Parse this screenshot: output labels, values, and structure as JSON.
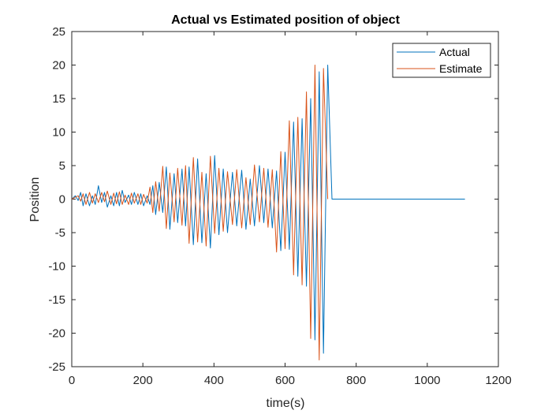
{
  "chart_data": {
    "type": "line",
    "title": "Actual vs Estimated position of object",
    "xlabel": "time(s)",
    "ylabel": "Position",
    "xlim": [
      0,
      1200
    ],
    "ylim": [
      -25,
      25
    ],
    "xticks": [
      0,
      200,
      400,
      600,
      800,
      1000,
      1200
    ],
    "yticks": [
      -25,
      -20,
      -15,
      -10,
      -5,
      0,
      5,
      10,
      15,
      20,
      25
    ],
    "grid": false,
    "legend_position": "top-right",
    "series": [
      {
        "name": "Actual",
        "color": "#0072BD",
        "x": [
          0,
          10,
          18,
          25,
          32,
          40,
          50,
          58,
          66,
          75,
          84,
          92,
          100,
          110,
          118,
          126,
          134,
          142,
          150,
          160,
          168,
          176,
          186,
          194,
          202,
          212,
          220,
          228,
          236,
          246,
          256,
          266,
          276,
          288,
          298,
          310,
          320,
          330,
          342,
          354,
          366,
          378,
          390,
          402,
          414,
          426,
          438,
          452,
          464,
          478,
          490,
          502,
          514,
          528,
          540,
          552,
          564,
          576,
          588,
          600,
          612,
          624,
          636,
          648,
          660,
          672,
          684,
          696,
          708,
          720,
          732,
          746,
          758,
          770,
          784,
          798,
          812,
          828,
          844,
          860,
          876,
          890,
          904,
          918,
          932,
          948,
          964,
          978,
          994,
          1008,
          1022,
          1036,
          1050,
          1064,
          1078,
          1092,
          1106
        ],
        "y": [
          0,
          0.5,
          -0.2,
          1.0,
          -1.0,
          0.8,
          -1.0,
          0.5,
          -0.8,
          2.0,
          -0.5,
          1.0,
          -1.2,
          0.5,
          -1.0,
          1.0,
          -1.0,
          1.3,
          -0.5,
          0.6,
          -0.8,
          1.0,
          -0.8,
          0.8,
          -1.0,
          0.5,
          -0.8,
          2.0,
          -2.3,
          2.5,
          -2.0,
          4.8,
          -4.5,
          3.8,
          -3.5,
          4.5,
          -4.0,
          4.8,
          -6.8,
          6.0,
          -6.5,
          3.8,
          -7.3,
          6.5,
          -5.3,
          4.5,
          -5.0,
          4.0,
          -4.0,
          4.3,
          -4.5,
          3.0,
          -4.0,
          5.0,
          -3.5,
          4.5,
          -4.3,
          4.2,
          -7.7,
          7.0,
          -7.5,
          11.5,
          -11.5,
          12.0,
          -13.0,
          15.0,
          -21.0,
          19.0,
          -23.0,
          20.0,
          0,
          0,
          0,
          0,
          0,
          0,
          0,
          0,
          0,
          0,
          0,
          0,
          0,
          0,
          0,
          0,
          0,
          0,
          0,
          0,
          0,
          0,
          0,
          0,
          0,
          0,
          0
        ]
      },
      {
        "name": "Estimate",
        "color": "#D95319",
        "x": [
          0,
          10,
          18,
          25,
          32,
          40,
          50,
          58,
          66,
          75,
          84,
          92,
          100,
          110,
          118,
          126,
          134,
          142,
          150,
          160,
          168,
          176,
          186,
          194,
          202,
          212,
          220,
          228,
          236,
          246,
          256,
          266,
          276,
          288,
          298,
          310,
          320,
          330,
          342,
          354,
          366,
          378,
          390,
          402,
          414,
          426,
          438,
          452,
          464,
          478,
          490,
          502,
          514,
          528,
          540,
          552,
          564,
          576,
          588,
          600,
          612,
          624,
          636,
          648,
          660,
          672,
          684,
          696,
          708,
          720
        ],
        "y": [
          0,
          0.3,
          0.5,
          -0.3,
          0.8,
          -0.8,
          1.0,
          -0.6,
          0.8,
          -0.5,
          1.0,
          -0.4,
          1.2,
          -0.8,
          0.9,
          -0.7,
          1.1,
          -0.8,
          0.6,
          -0.8,
          0.9,
          -0.6,
          0.8,
          -0.8,
          0.7,
          -0.6,
          1.8,
          -2.0,
          2.6,
          -1.8,
          4.9,
          -4.4,
          3.9,
          -3.4,
          4.6,
          -3.9,
          5.0,
          -6.6,
          6.2,
          -6.4,
          4.0,
          -7.0,
          6.4,
          -5.1,
          4.6,
          -4.8,
          4.1,
          -3.8,
          4.4,
          -4.3,
          3.2,
          -3.8,
          5.1,
          -3.4,
          4.6,
          -4.2,
          4.4,
          -7.9,
          7.1,
          -7.4,
          11.7,
          -11.3,
          12.2,
          -12.8,
          16.0,
          -20.8,
          20.0,
          -24.0,
          19.5,
          0
        ]
      }
    ]
  }
}
